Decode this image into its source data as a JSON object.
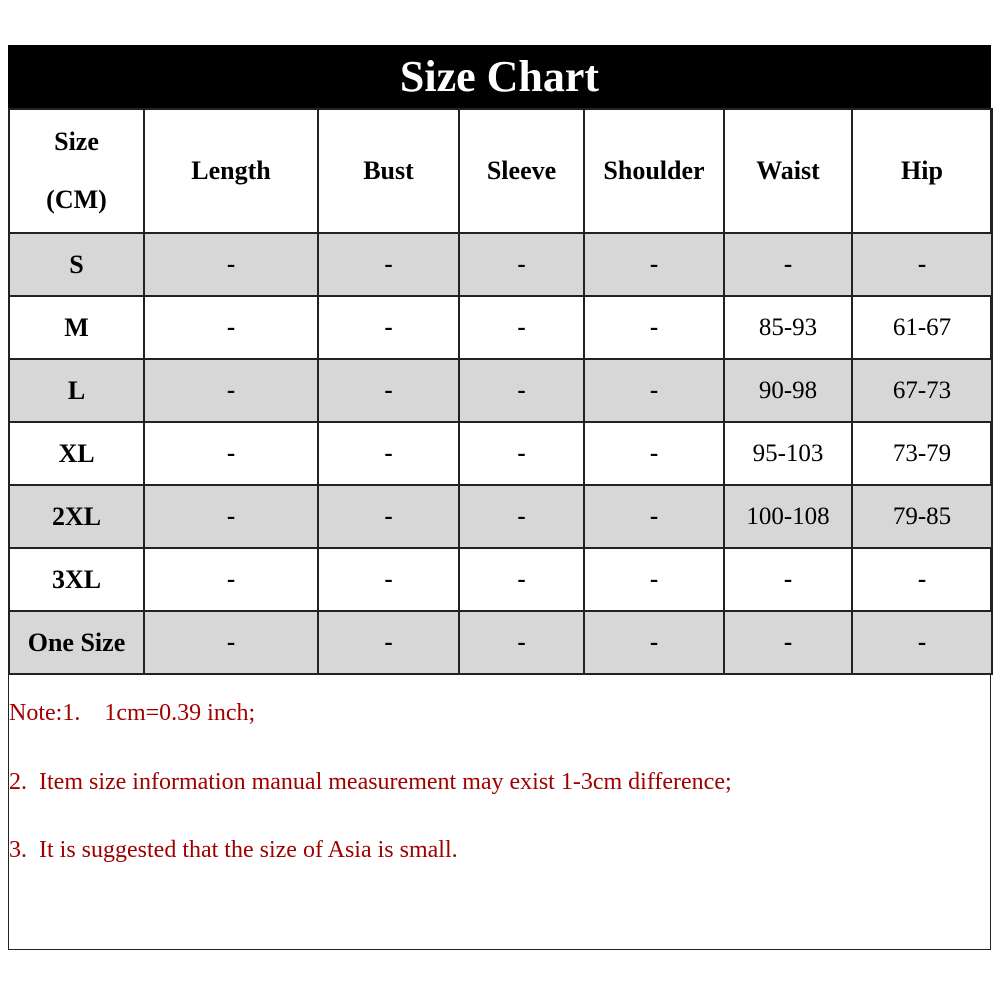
{
  "title": "Size Chart",
  "table": {
    "headers": [
      "Size (CM)",
      "Length",
      "Bust",
      "Sleeve",
      "Shoulder",
      "Waist",
      "Hip"
    ],
    "header_size_line1": "Size",
    "header_size_line2": "(CM)",
    "rows": [
      {
        "size": "S",
        "cells": [
          "-",
          "-",
          "-",
          "-",
          "-",
          "-"
        ]
      },
      {
        "size": "M",
        "cells": [
          "-",
          "-",
          "-",
          "-",
          "85-93",
          "61-67"
        ]
      },
      {
        "size": "L",
        "cells": [
          "-",
          "-",
          "-",
          "-",
          "90-98",
          "67-73"
        ]
      },
      {
        "size": "XL",
        "cells": [
          "-",
          "-",
          "-",
          "-",
          "95-103",
          "73-79"
        ]
      },
      {
        "size": "2XL",
        "cells": [
          "-",
          "-",
          "-",
          "-",
          "100-108",
          "79-85"
        ]
      },
      {
        "size": "3XL",
        "cells": [
          "-",
          "-",
          "-",
          "-",
          "-",
          "-"
        ]
      },
      {
        "size": "One Size",
        "cells": [
          "-",
          "-",
          "-",
          "-",
          "-",
          "-"
        ]
      }
    ],
    "alternate_row_color": "#d7d7d7"
  },
  "notes": [
    "Note:1.    1cm=0.39 inch;",
    "2.  Item size information manual measurement may exist 1-3cm difference;",
    "3.  It is suggested that the size of Asia is small."
  ],
  "note_color": "#a00000"
}
